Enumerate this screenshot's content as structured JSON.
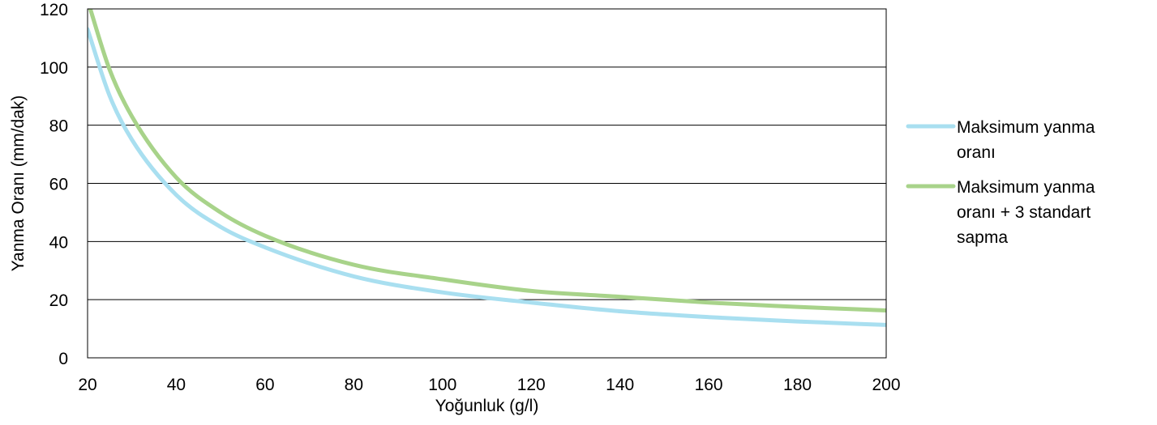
{
  "chart_data": {
    "type": "line",
    "xlabel": "Yoğunluk (g/l)",
    "ylabel": "Yanma Oranı (mm/dak)",
    "xlim": [
      20,
      200
    ],
    "ylim": [
      0,
      120
    ],
    "x_ticks": [
      "20",
      "40",
      "60",
      "80",
      "100",
      "120",
      "140",
      "160",
      "180",
      "200"
    ],
    "y_ticks": [
      "0",
      "20",
      "40",
      "60",
      "80",
      "100",
      "120"
    ],
    "grid": "horizontal",
    "legend_position": "right",
    "x": [
      20,
      25,
      30,
      40,
      50,
      60,
      80,
      100,
      120,
      140,
      160,
      180,
      200
    ],
    "series": [
      {
        "name": "Maksimum yanma oranı",
        "name_lines": [
          "Maksimum yanma",
          "oranı"
        ],
        "color": "#a9dff0",
        "values": [
          113,
          90,
          75,
          56,
          45,
          38,
          28,
          22.5,
          19,
          16,
          14,
          12.5,
          11.3
        ]
      },
      {
        "name": "Maksimum yanma oranı + 3 standart sapma",
        "name_lines": [
          "Maksimum yanma",
          "oranı + 3 standart",
          "sapma"
        ],
        "color": "#a8d38a",
        "values": [
          123,
          99,
          83,
          62,
          50,
          42,
          32,
          27,
          23,
          21,
          19,
          17.5,
          16.3
        ]
      }
    ]
  }
}
